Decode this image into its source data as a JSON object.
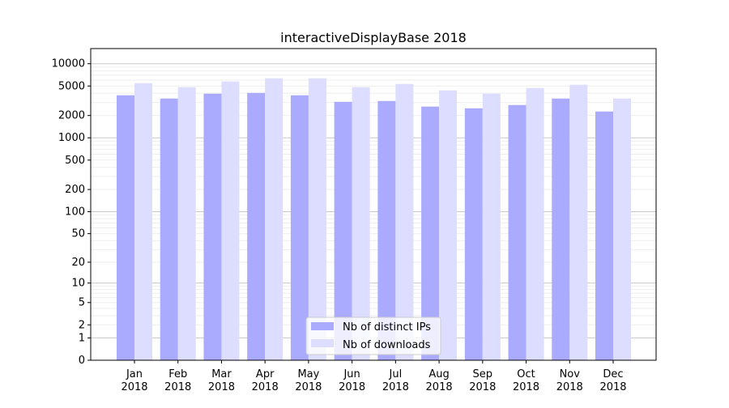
{
  "chart_data": {
    "type": "bar",
    "title": "interactiveDisplayBase 2018",
    "xlabel": "",
    "ylabel": "",
    "yscale": "log10(1+y)",
    "ylim": [
      0,
      16000
    ],
    "grid": true,
    "legend_placement": "lower-center",
    "yticks": [
      0,
      1,
      2,
      5,
      10,
      20,
      50,
      100,
      200,
      500,
      1000,
      2000,
      5000,
      10000
    ],
    "categories": [
      "Jan\n2018",
      "Feb\n2018",
      "Mar\n2018",
      "Apr\n2018",
      "May\n2018",
      "Jun\n2018",
      "Jul\n2018",
      "Aug\n2018",
      "Sep\n2018",
      "Oct\n2018",
      "Nov\n2018",
      "Dec\n2018"
    ],
    "series": [
      {
        "name": "Nb of distinct IPs",
        "color": "#aaaaff",
        "values": [
          3750,
          3390,
          3940,
          4040,
          3750,
          3060,
          3140,
          2640,
          2500,
          2770,
          3390,
          2265
        ]
      },
      {
        "name": "Nb of downloads",
        "color": "#ddddff",
        "values": [
          5470,
          4820,
          5750,
          6350,
          6350,
          4820,
          5330,
          4360,
          3940,
          4700,
          5200,
          3390
        ]
      }
    ]
  }
}
